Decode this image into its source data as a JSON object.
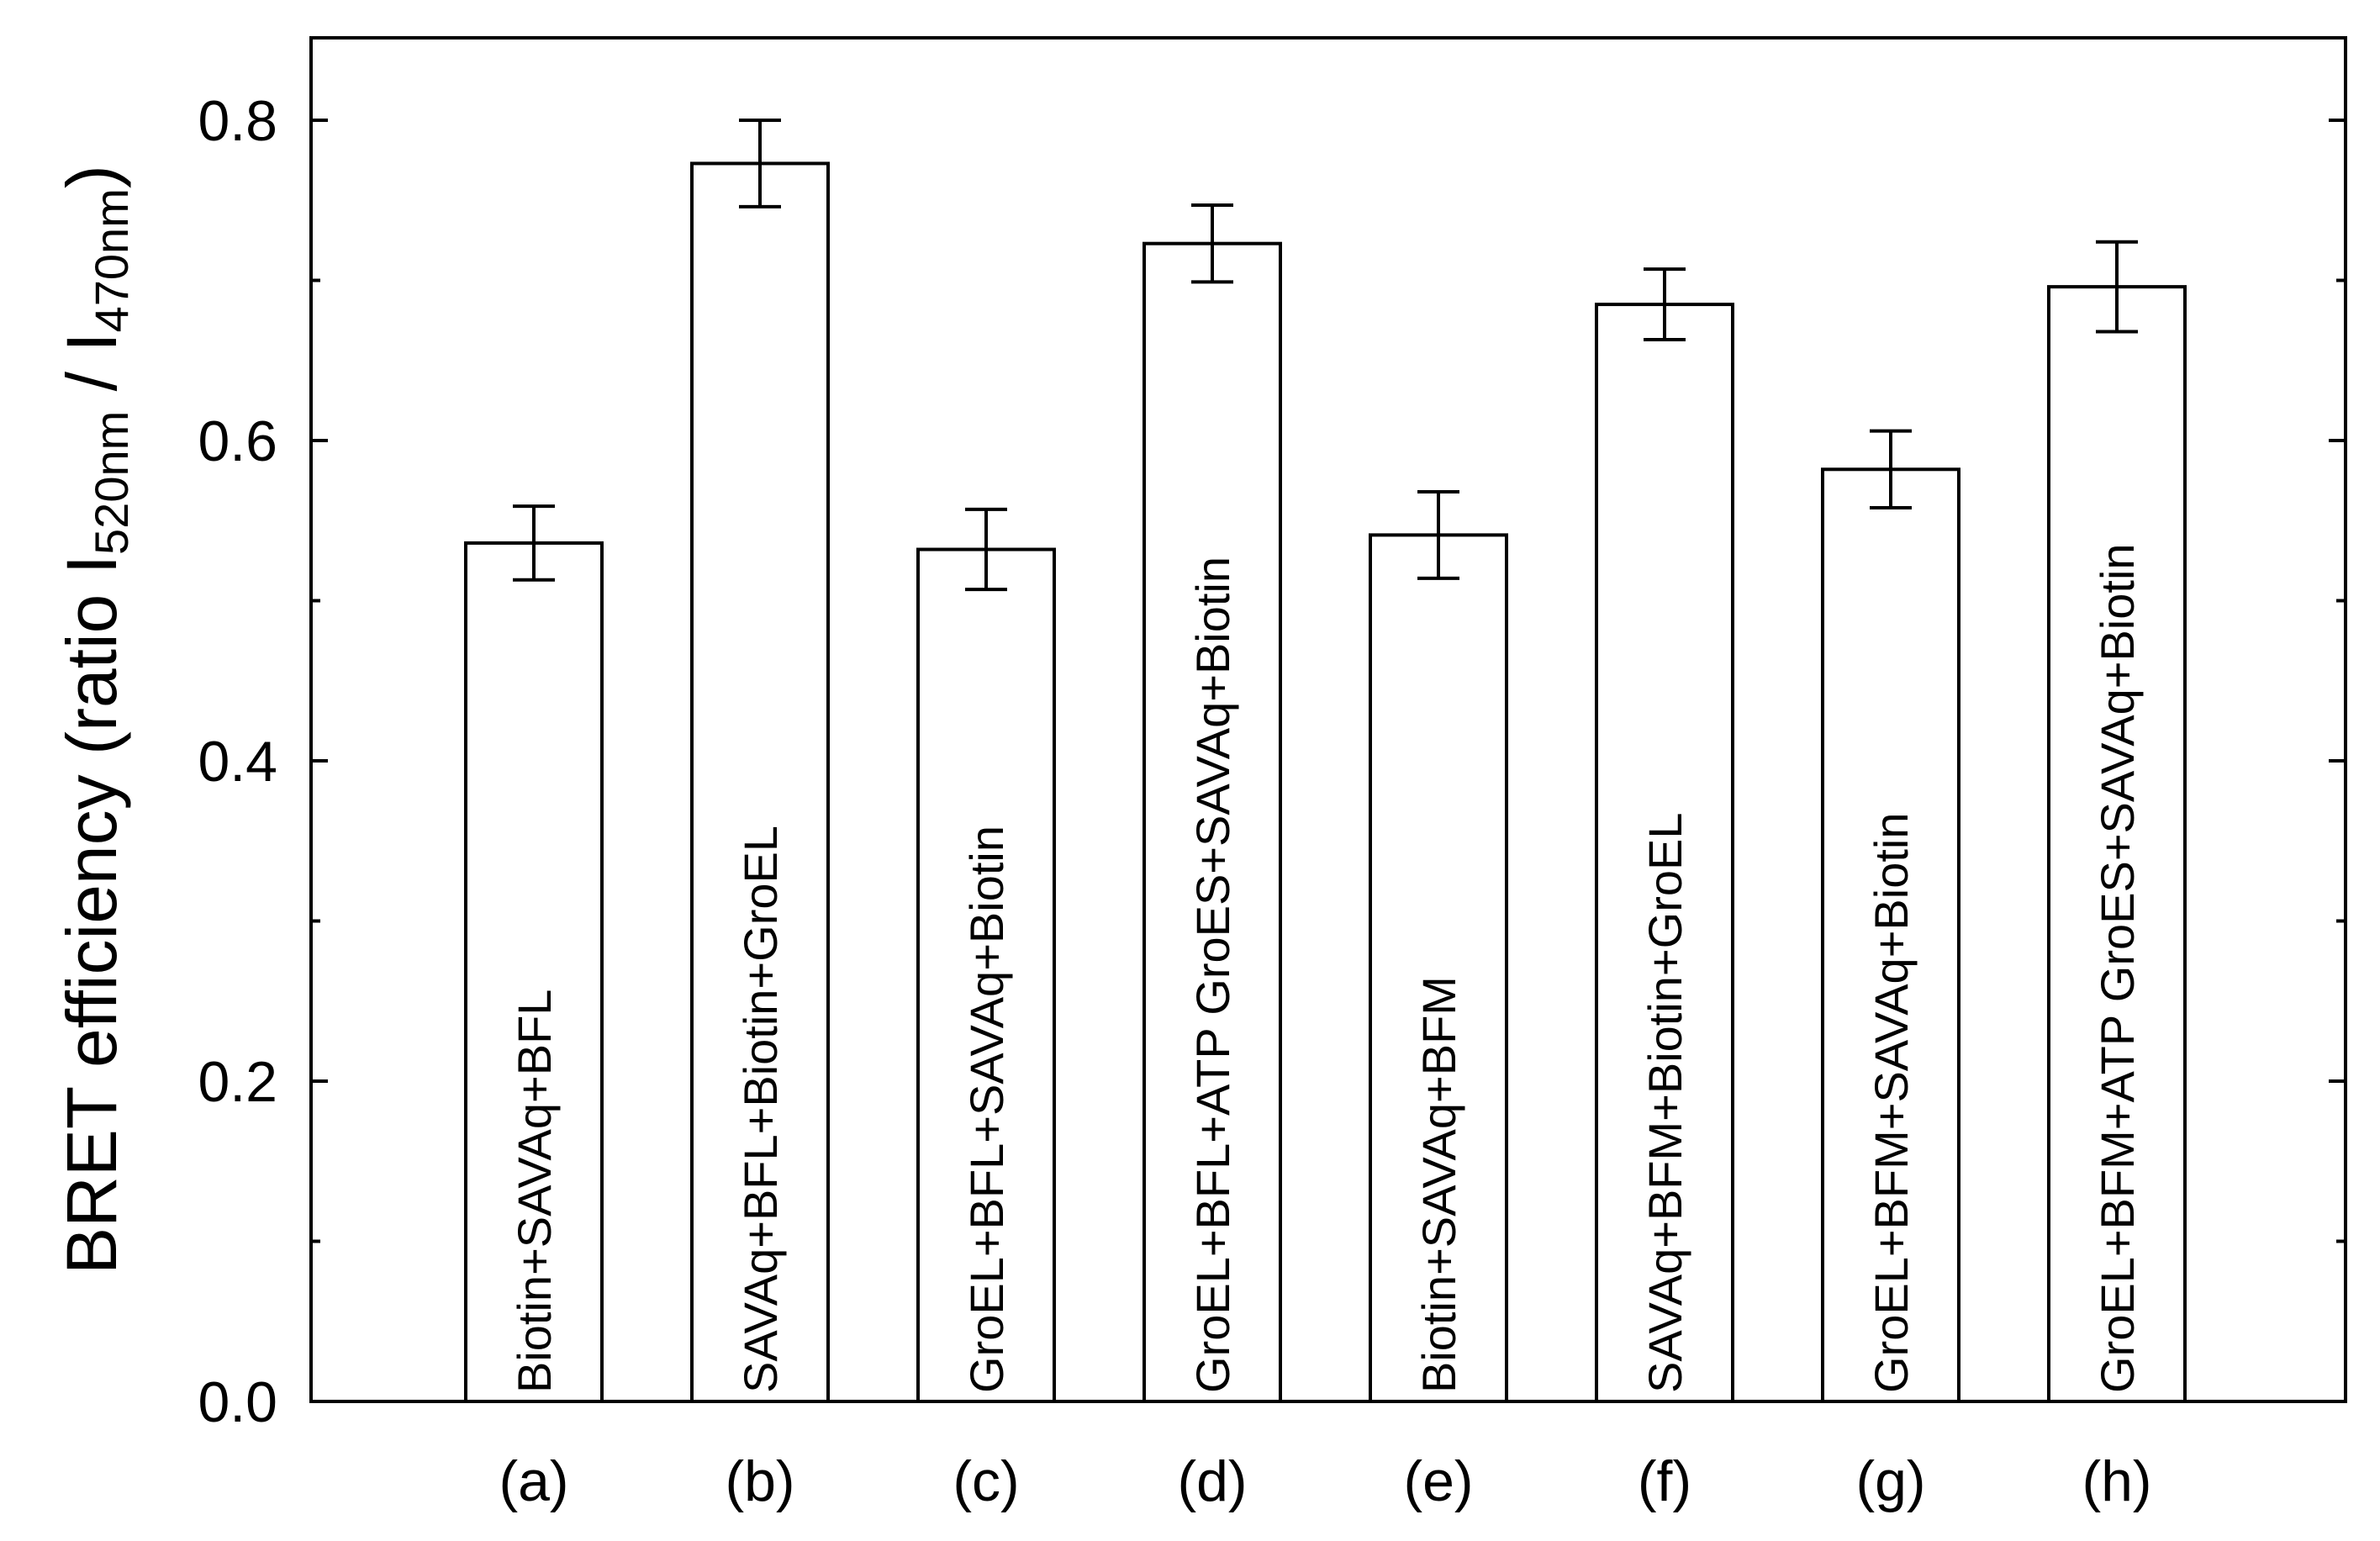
{
  "chart_data": {
    "type": "bar",
    "title": "",
    "xlabel": "",
    "ylabel": "BRET efficiency (ratio I",
    "ylabel_sub1": "520nm",
    "ylabel_mid": " / I",
    "ylabel_sub2": "470nm",
    "ylabel_end": ")",
    "ylim": [
      0,
      0.85
    ],
    "yticks": [
      0.0,
      0.2,
      0.4,
      0.6,
      0.8
    ],
    "ytick_labels": [
      "0.0",
      "0.2",
      "0.4",
      "0.6",
      "0.8"
    ],
    "minor_yticks": [
      0.1,
      0.3,
      0.5,
      0.7
    ],
    "grid": false,
    "categories": [
      "(a)",
      "(b)",
      "(c)",
      "(d)",
      "(e)",
      "(f)",
      "(g)",
      "(h)"
    ],
    "bar_labels": [
      "Biotin+SAVAq+BFL",
      "SAVAq+BFL+Biotin+GroEL",
      "GroEL+BFL+SAVAq+Biotin",
      "GroEL+BFL+ATP GroES+SAVAq+Biotin",
      "Biotin+SAVAq+BFM",
      "SAVAq+BFM+Biotin+GroEL",
      "GroEL+BFM+SAVAq+Biotin",
      "GroEL+BFM+ATP GroES+SAVAq+Biotin"
    ],
    "values": [
      0.536,
      0.773,
      0.532,
      0.723,
      0.541,
      0.685,
      0.582,
      0.696
    ],
    "errors": [
      0.023,
      0.027,
      0.025,
      0.024,
      0.027,
      0.022,
      0.024,
      0.028
    ]
  }
}
